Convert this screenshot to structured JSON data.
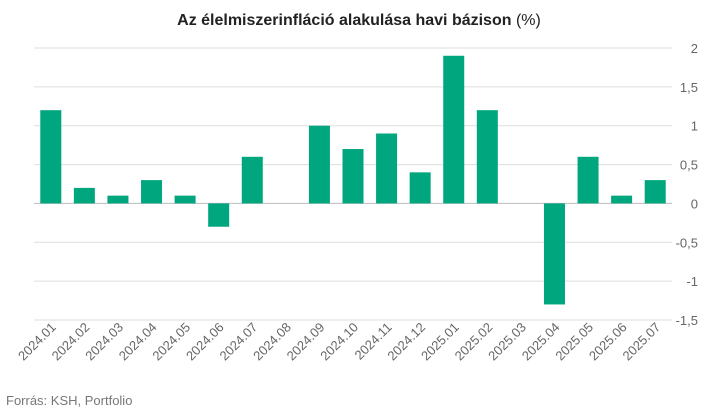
{
  "title": "Az élelmiszerinfláció alakulása havi bázison",
  "unit": "(%)",
  "source": "Forrás: KSH, Portfolio",
  "colors": {
    "bar": "#00a67e",
    "grid": "#dddddd",
    "zero": "#bbbbbb"
  },
  "chart_data": {
    "type": "bar",
    "title": "Az élelmiszerinfláció alakulása havi bázison (%)",
    "xlabel": "",
    "ylabel": "",
    "ylim": [
      -1.5,
      2
    ],
    "yticks": [
      "2",
      "1,5",
      "1",
      "0,5",
      "0",
      "-0,5",
      "-1",
      "-1,5"
    ],
    "ytick_values": [
      2,
      1.5,
      1,
      0.5,
      0,
      -0.5,
      -1,
      -1.5
    ],
    "y_axis_position": "right",
    "grid": true,
    "categories": [
      "2024.01",
      "2024.02",
      "2024.03",
      "2024.04",
      "2024.05",
      "2024.06",
      "2024.07",
      "2024.08",
      "2024.09",
      "2024.10",
      "2024.11",
      "2024.12",
      "2025.01",
      "2025.02",
      "2025.03",
      "2025.04",
      "2025.05",
      "2025.06",
      "2025.07"
    ],
    "values": [
      1.2,
      0.2,
      0.1,
      0.3,
      0.1,
      -0.3,
      0.6,
      0.0,
      1.0,
      0.7,
      0.9,
      0.4,
      1.9,
      1.2,
      0.0,
      -1.3,
      0.6,
      0.1,
      0.3
    ]
  }
}
